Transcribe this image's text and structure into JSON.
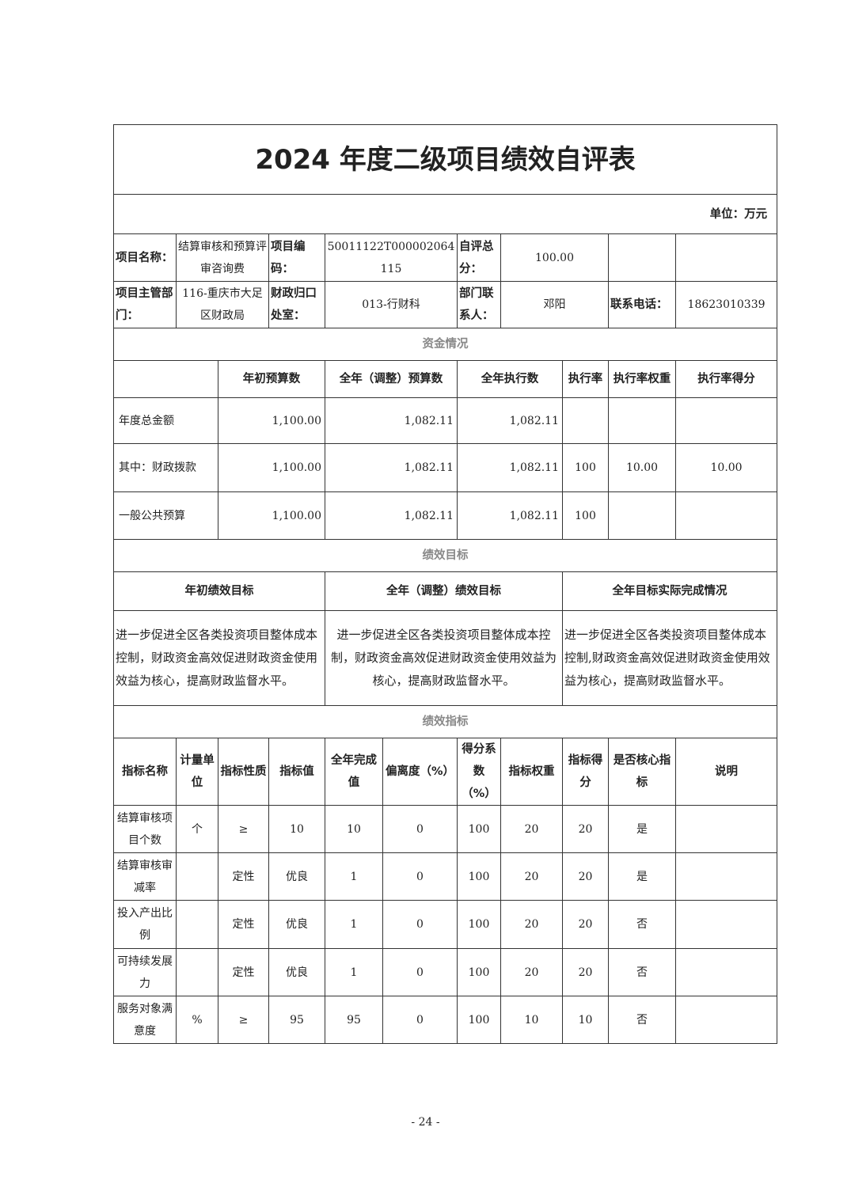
{
  "title": "2024 年度二级项目绩效自评表",
  "unit": "单位：万元",
  "info": {
    "project_name_label": "项目名称：",
    "project_name": "结算审核和预算评审咨询费",
    "project_code_label": "项目编码：",
    "project_code": "50011122T000002064115",
    "self_score_label": "自评总分：",
    "self_score": "100.00",
    "dept_label": "项目主管部门：",
    "dept": "116-重庆市大足区财政局",
    "office_label": "财政归口处室：",
    "office": "013-行财科",
    "contact_label": "部门联系人：",
    "contact": "邓阳",
    "phone_label": "联系电话：",
    "phone": "18623010339"
  },
  "funds": {
    "section": "资金情况",
    "headers": [
      "年初预算数",
      "全年（调整）预算数",
      "全年执行数",
      "执行率",
      "执行率权重",
      "执行率得分"
    ],
    "rows": [
      {
        "name": "年度总金额",
        "initial": "1,100.00",
        "adjusted": "1,082.11",
        "executed": "1,082.11",
        "rate": "",
        "weight": "",
        "score": ""
      },
      {
        "name": "其中：财政拨款",
        "initial": "1,100.00",
        "adjusted": "1,082.11",
        "executed": "1,082.11",
        "rate": "100",
        "weight": "10.00",
        "score": "10.00"
      },
      {
        "name": "一般公共预算",
        "initial": "1,100.00",
        "adjusted": "1,082.11",
        "executed": "1,082.11",
        "rate": "100",
        "weight": "",
        "score": ""
      }
    ]
  },
  "goals": {
    "section": "绩效目标",
    "headers": [
      "年初绩效目标",
      "全年（调整）绩效目标",
      "全年目标实际完成情况"
    ],
    "values": [
      "进一步促进全区各类投资项目整体成本控制，财政资金高效促进财政资金使用效益为核心，提高财政监督水平。",
      "进一步促进全区各类投资项目整体成本控制，财政资金高效促进财政资金使用效益为核心，提高财政监督水平。",
      "进一步促进全区各类投资项目整体成本控制,财政资金高效促进财政资金使用效益为核心，提高财政监督水平。"
    ]
  },
  "indicators": {
    "section": "绩效指标",
    "headers": [
      "指标名称",
      "计量单位",
      "指标性质",
      "指标值",
      "全年完成值",
      "偏离度（%）",
      "得分系数（%）",
      "指标权重",
      "指标得分",
      "是否核心指标",
      "说明"
    ],
    "rows": [
      [
        "结算审核项目个数",
        "个",
        "≥",
        "10",
        "10",
        "0",
        "100",
        "20",
        "20",
        "是",
        ""
      ],
      [
        "结算审核审减率",
        "",
        "定性",
        "优良",
        "1",
        "0",
        "100",
        "20",
        "20",
        "是",
        ""
      ],
      [
        "投入产出比例",
        "",
        "定性",
        "优良",
        "1",
        "0",
        "100",
        "20",
        "20",
        "否",
        ""
      ],
      [
        "可持续发展力",
        "",
        "定性",
        "优良",
        "1",
        "0",
        "100",
        "20",
        "20",
        "否",
        ""
      ],
      [
        "服务对象满意度",
        "%",
        "≥",
        "95",
        "95",
        "0",
        "100",
        "10",
        "10",
        "否",
        ""
      ]
    ]
  },
  "page_number": "- 24 -"
}
